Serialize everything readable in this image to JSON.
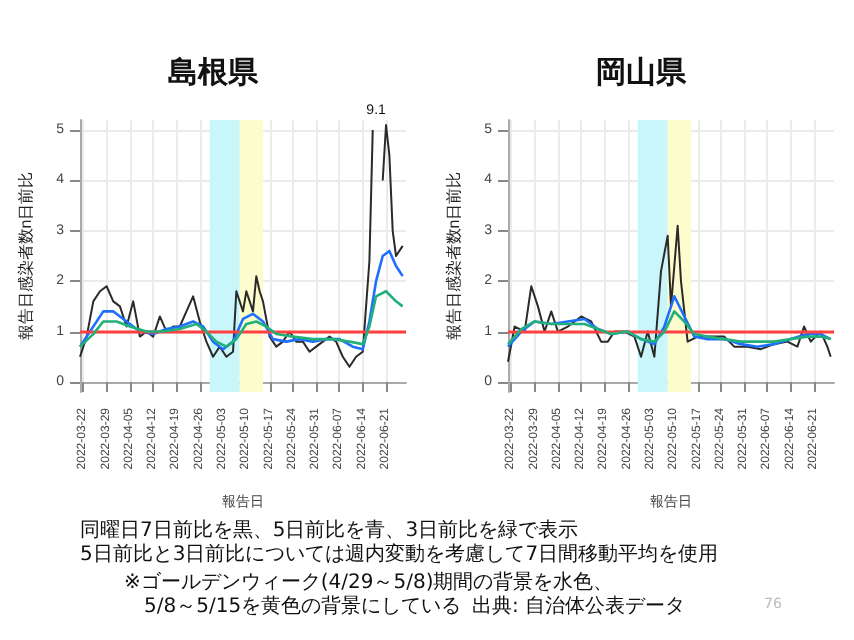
{
  "chart_data": [
    {
      "type": "line",
      "title": "島根県",
      "xlabel": "報告日",
      "ylabel": "報告日感染者数n日前比",
      "grid": true,
      "xlim": [
        "2022-03-21",
        "2022-06-27"
      ],
      "xticks": [
        "2022-03-22",
        "2022-03-29",
        "2022-04-05",
        "2022-04-12",
        "2022-04-19",
        "2022-04-26",
        "2022-05-03",
        "2022-05-10",
        "2022-05-17",
        "2022-05-24",
        "2022-05-31",
        "2022-06-07",
        "2022-06-14",
        "2022-06-21"
      ],
      "ylim": [
        -0.2,
        5.2
      ],
      "yticks": [
        0,
        1,
        2,
        3,
        4,
        5
      ],
      "ref_lines": [
        {
          "axis": "y",
          "value": 1,
          "color": "#ff4040"
        }
      ],
      "bands": [
        {
          "axis": "x",
          "from": "2022-04-29",
          "to": "2022-05-08",
          "color": "#c8f6fa"
        },
        {
          "axis": "x",
          "from": "2022-05-08",
          "to": "2022-05-15",
          "color": "#fcfccc"
        }
      ],
      "series": [
        {
          "color": "#2a2a2a",
          "x": [
            "2022-03-21",
            "2022-03-23",
            "2022-03-25",
            "2022-03-27",
            "2022-03-29",
            "2022-03-31",
            "2022-04-02",
            "2022-04-04",
            "2022-04-06",
            "2022-04-08",
            "2022-04-10",
            "2022-04-12",
            "2022-04-14",
            "2022-04-16",
            "2022-04-18",
            "2022-04-20",
            "2022-04-22",
            "2022-04-24",
            "2022-04-26",
            "2022-04-28",
            "2022-04-30",
            "2022-05-02",
            "2022-05-04",
            "2022-05-06",
            "2022-05-07",
            "2022-05-09",
            "2022-05-10",
            "2022-05-12",
            "2022-05-13",
            "2022-05-14",
            "2022-05-15",
            "2022-05-17",
            "2022-05-19",
            "2022-05-21",
            "2022-05-23",
            "2022-05-25",
            "2022-05-27",
            "2022-05-29",
            "2022-05-31",
            "2022-06-02",
            "2022-06-04",
            "2022-06-06",
            "2022-06-08",
            "2022-06-10",
            "2022-06-12",
            "2022-06-14",
            "2022-06-15",
            "2022-06-16",
            "2022-06-17",
            "2022-06-18",
            "2022-06-19",
            "2022-06-20",
            "2022-06-21",
            "2022-06-22",
            "2022-06-23",
            "2022-06-24",
            "2022-06-26"
          ],
          "values": [
            0.5,
            0.9,
            1.6,
            1.8,
            1.9,
            1.6,
            1.5,
            1.1,
            1.6,
            0.9,
            1.0,
            0.9,
            1.3,
            1.0,
            1.1,
            1.1,
            1.4,
            1.7,
            1.2,
            0.8,
            0.5,
            0.7,
            0.5,
            0.6,
            1.8,
            1.4,
            1.8,
            1.4,
            2.1,
            1.8,
            1.6,
            0.9,
            0.7,
            0.8,
            1.0,
            0.8,
            0.8,
            0.6,
            0.7,
            0.8,
            0.9,
            0.8,
            0.5,
            0.3,
            0.5,
            0.6,
            1.5,
            2.4,
            5.0,
            null,
            null,
            4.0,
            5.1,
            4.5,
            3.0,
            2.5,
            2.7
          ]
        },
        {
          "color": "#1f6fff",
          "x": [
            "2022-03-21",
            "2022-03-25",
            "2022-03-28",
            "2022-03-31",
            "2022-04-04",
            "2022-04-08",
            "2022-04-12",
            "2022-04-16",
            "2022-04-20",
            "2022-04-24",
            "2022-04-27",
            "2022-04-30",
            "2022-05-03",
            "2022-05-06",
            "2022-05-09",
            "2022-05-12",
            "2022-05-15",
            "2022-05-18",
            "2022-05-22",
            "2022-05-26",
            "2022-05-30",
            "2022-06-03",
            "2022-06-07",
            "2022-06-11",
            "2022-06-14",
            "2022-06-16",
            "2022-06-18",
            "2022-06-20",
            "2022-06-22",
            "2022-06-24",
            "2022-06-26"
          ],
          "values": [
            0.7,
            1.1,
            1.4,
            1.4,
            1.2,
            1.0,
            0.95,
            1.05,
            1.1,
            1.2,
            1.1,
            0.8,
            0.65,
            0.8,
            1.25,
            1.35,
            1.2,
            0.85,
            0.8,
            0.85,
            0.8,
            0.85,
            0.85,
            0.7,
            0.65,
            1.2,
            2.0,
            2.5,
            2.6,
            2.3,
            2.1
          ]
        },
        {
          "color": "#22b07a",
          "x": [
            "2022-03-21",
            "2022-03-25",
            "2022-03-28",
            "2022-04-01",
            "2022-04-05",
            "2022-04-10",
            "2022-04-15",
            "2022-04-20",
            "2022-04-25",
            "2022-04-28",
            "2022-05-01",
            "2022-05-04",
            "2022-05-07",
            "2022-05-10",
            "2022-05-13",
            "2022-05-16",
            "2022-05-19",
            "2022-05-24",
            "2022-05-30",
            "2022-06-05",
            "2022-06-10",
            "2022-06-14",
            "2022-06-16",
            "2022-06-18",
            "2022-06-21",
            "2022-06-24",
            "2022-06-26"
          ],
          "values": [
            0.7,
            0.95,
            1.2,
            1.2,
            1.1,
            1.0,
            1.0,
            1.05,
            1.15,
            1.0,
            0.8,
            0.7,
            0.85,
            1.15,
            1.2,
            1.1,
            0.95,
            0.9,
            0.85,
            0.85,
            0.8,
            0.75,
            1.1,
            1.7,
            1.8,
            1.6,
            1.5
          ]
        }
      ],
      "annotations": [
        {
          "text": "9.1",
          "x": "2022-06-18",
          "y": 5.2
        },
        "同曜日7日前比を黒、5日前比を青、3日前比を緑で表示",
        "5日前比と3日前比については週内変動を考慮して7日間移動平均を使用",
        "※ゴールデンウィーク(4/29～5/8)期間の背景を水色、",
        "5/8～5/15を黄色の背景にしている",
        "出典: 自治体公表データ",
        "76"
      ]
    },
    {
      "type": "line",
      "title": "岡山県",
      "xlabel": "報告日",
      "ylabel": "報告日感染者数n日前比",
      "grid": true,
      "xlim": [
        "2022-03-21",
        "2022-06-27"
      ],
      "xticks": [
        "2022-03-22",
        "2022-03-29",
        "2022-04-05",
        "2022-04-12",
        "2022-04-19",
        "2022-04-26",
        "2022-05-03",
        "2022-05-10",
        "2022-05-17",
        "2022-05-24",
        "2022-05-31",
        "2022-06-07",
        "2022-06-14",
        "2022-06-21"
      ],
      "ylim": [
        -0.2,
        5.2
      ],
      "yticks": [
        0,
        1,
        2,
        3,
        4,
        5
      ],
      "ref_lines": [
        {
          "axis": "y",
          "value": 1,
          "color": "#ff4040"
        }
      ],
      "bands": [
        {
          "axis": "x",
          "from": "2022-04-29",
          "to": "2022-05-08",
          "color": "#c8f6fa"
        },
        {
          "axis": "x",
          "from": "2022-05-08",
          "to": "2022-05-15",
          "color": "#fcfccc"
        }
      ],
      "series": [
        {
          "color": "#2a2a2a",
          "x": [
            "2022-03-21",
            "2022-03-23",
            "2022-03-26",
            "2022-03-28",
            "2022-03-30",
            "2022-04-01",
            "2022-04-03",
            "2022-04-05",
            "2022-04-08",
            "2022-04-12",
            "2022-04-15",
            "2022-04-18",
            "2022-04-20",
            "2022-04-22",
            "2022-04-25",
            "2022-04-28",
            "2022-04-30",
            "2022-05-02",
            "2022-05-04",
            "2022-05-06",
            "2022-05-08",
            "2022-05-09",
            "2022-05-11",
            "2022-05-12",
            "2022-05-14",
            "2022-05-17",
            "2022-05-21",
            "2022-05-25",
            "2022-05-28",
            "2022-06-01",
            "2022-06-05",
            "2022-06-09",
            "2022-06-13",
            "2022-06-16",
            "2022-06-18",
            "2022-06-20",
            "2022-06-23",
            "2022-06-25",
            "2022-06-26"
          ],
          "values": [
            0.4,
            1.1,
            1.0,
            1.9,
            1.5,
            1.0,
            1.4,
            1.0,
            1.1,
            1.3,
            1.2,
            0.8,
            0.8,
            1.0,
            1.0,
            0.9,
            0.5,
            1.0,
            0.5,
            2.2,
            2.9,
            1.5,
            3.1,
            2.0,
            0.8,
            0.9,
            0.9,
            0.9,
            0.7,
            0.7,
            0.65,
            0.75,
            0.8,
            0.7,
            1.1,
            0.8,
            1.0,
            0.7,
            0.5
          ]
        },
        {
          "color": "#1f6fff",
          "x": [
            "2022-03-21",
            "2022-03-25",
            "2022-03-29",
            "2022-04-03",
            "2022-04-08",
            "2022-04-13",
            "2022-04-17",
            "2022-04-21",
            "2022-04-26",
            "2022-04-30",
            "2022-05-04",
            "2022-05-07",
            "2022-05-10",
            "2022-05-13",
            "2022-05-16",
            "2022-05-20",
            "2022-05-25",
            "2022-05-30",
            "2022-06-04",
            "2022-06-09",
            "2022-06-14",
            "2022-06-19",
            "2022-06-23",
            "2022-06-26"
          ],
          "values": [
            0.7,
            1.0,
            1.2,
            1.15,
            1.2,
            1.25,
            1.05,
            0.95,
            1.0,
            0.85,
            0.75,
            1.1,
            1.7,
            1.3,
            0.9,
            0.85,
            0.85,
            0.75,
            0.7,
            0.75,
            0.85,
            0.95,
            0.95,
            0.85
          ]
        },
        {
          "color": "#22b07a",
          "x": [
            "2022-03-21",
            "2022-03-25",
            "2022-03-29",
            "2022-04-03",
            "2022-04-08",
            "2022-04-13",
            "2022-04-17",
            "2022-04-21",
            "2022-04-26",
            "2022-04-30",
            "2022-05-04",
            "2022-05-07",
            "2022-05-10",
            "2022-05-13",
            "2022-05-16",
            "2022-05-20",
            "2022-05-25",
            "2022-05-30",
            "2022-06-04",
            "2022-06-09",
            "2022-06-14",
            "2022-06-19",
            "2022-06-23",
            "2022-06-26"
          ],
          "values": [
            0.75,
            1.05,
            1.2,
            1.15,
            1.15,
            1.15,
            1.05,
            0.95,
            1.0,
            0.85,
            0.8,
            1.0,
            1.4,
            1.2,
            0.95,
            0.9,
            0.85,
            0.8,
            0.8,
            0.8,
            0.85,
            0.9,
            0.9,
            0.85
          ]
        }
      ]
    }
  ]
}
